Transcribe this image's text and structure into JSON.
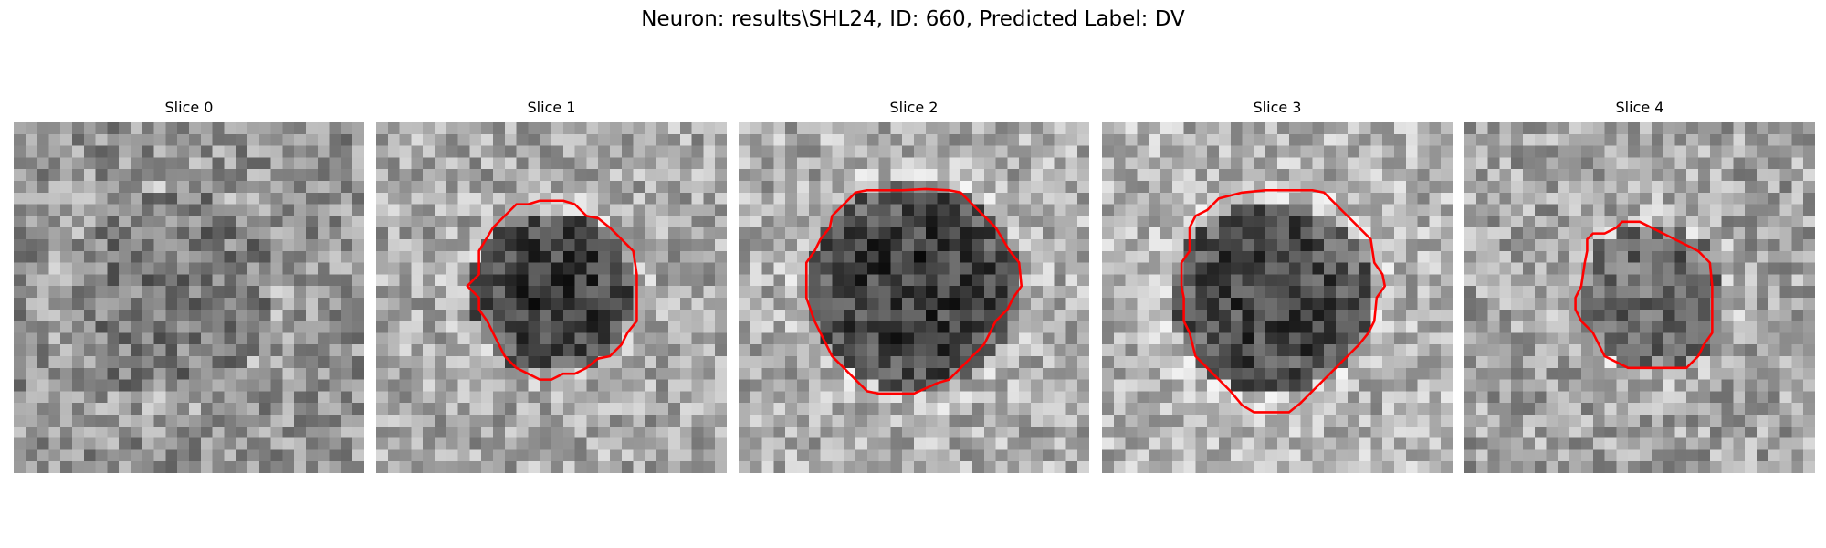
{
  "figure": {
    "title": "Neuron: results\\SHL24, ID: 660, Predicted Label: DV"
  },
  "colors": {
    "contour": "#ff0000",
    "background": "#ffffff"
  },
  "panels": [
    {
      "title": "Slice 0",
      "has_contour": false
    },
    {
      "title": "Slice 1",
      "has_contour": true
    },
    {
      "title": "Slice 2",
      "has_contour": true
    },
    {
      "title": "Slice 3",
      "has_contour": true
    },
    {
      "title": "Slice 4",
      "has_contour": true
    }
  ]
}
